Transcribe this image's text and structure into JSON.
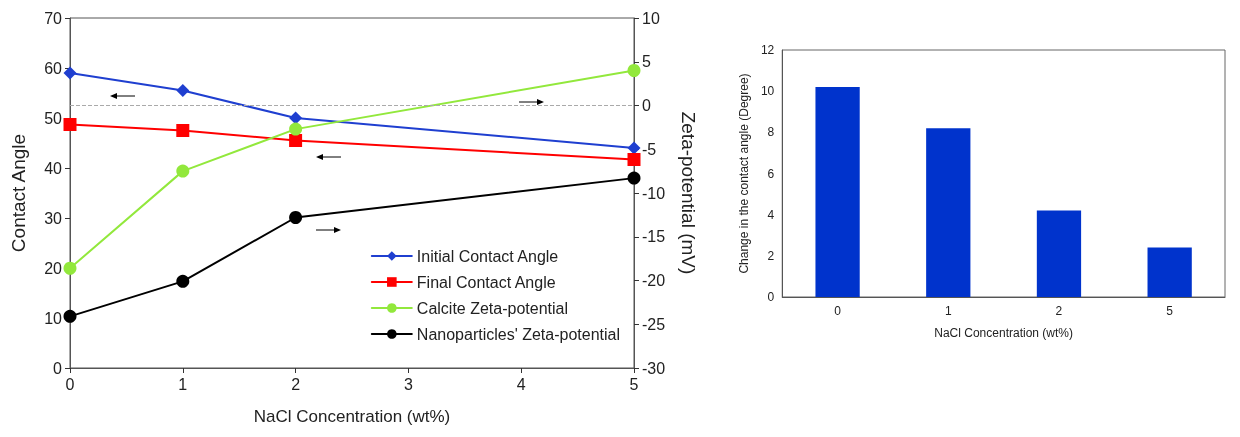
{
  "chart_data": [
    {
      "type": "line",
      "xlabel": "NaCl Concentration (wt%)",
      "ylabel": "Contact Angle",
      "y2label": "Zeta-potential (mV)",
      "x": [
        0,
        1,
        2,
        5
      ],
      "xlim": [
        0,
        5
      ],
      "xticks": [
        0,
        1,
        2,
        3,
        4,
        5
      ],
      "ylim": [
        0,
        70
      ],
      "yticks": [
        0,
        10,
        20,
        30,
        40,
        50,
        60,
        70
      ],
      "y2lim": [
        -30,
        10
      ],
      "y2ticks": [
        -30,
        -25,
        -20,
        -15,
        -10,
        -5,
        0,
        5,
        10
      ],
      "legend": "bottom right",
      "grid": false,
      "line_style": "solid",
      "ref_lines": [
        {
          "axis": "y2",
          "value": 0,
          "color": "#aaaaaa",
          "line_style": "dashed"
        }
      ],
      "series": [
        {
          "name": "Initial Contact Angle",
          "color": "#1f3fd0",
          "marker": "diamond",
          "values": [
            59,
            55.5,
            50,
            44
          ]
        },
        {
          "name": "Final Contact Angle",
          "color": "#ff0000",
          "marker": "square",
          "values": [
            48.7,
            47.5,
            45.5,
            41.7
          ]
        },
        {
          "name": "Calcite Zeta-potential",
          "color": "#92e83c",
          "marker": "circle",
          "axis": "y2",
          "values": [
            -18.6,
            -7.5,
            -2.7,
            4
          ]
        },
        {
          "name": "Nanoparticles' Zeta-potential",
          "color": "#000000",
          "marker": "circle",
          "axis": "y2",
          "values": [
            -24.1,
            -20.1,
            -12.8,
            -8.3
          ]
        }
      ]
    },
    {
      "type": "bar",
      "xlabel": "NaCl Concentration (wt%)",
      "ylabel": "Change in the contact angle (Degree)",
      "categories": [
        "0",
        "1",
        "2",
        "5"
      ],
      "values": [
        10.2,
        8.2,
        4.2,
        2.4
      ],
      "color": "#0033cc",
      "ylim": [
        0,
        12
      ],
      "yticks": [
        0,
        2,
        4,
        6,
        8,
        10,
        12
      ],
      "grid": false
    }
  ]
}
